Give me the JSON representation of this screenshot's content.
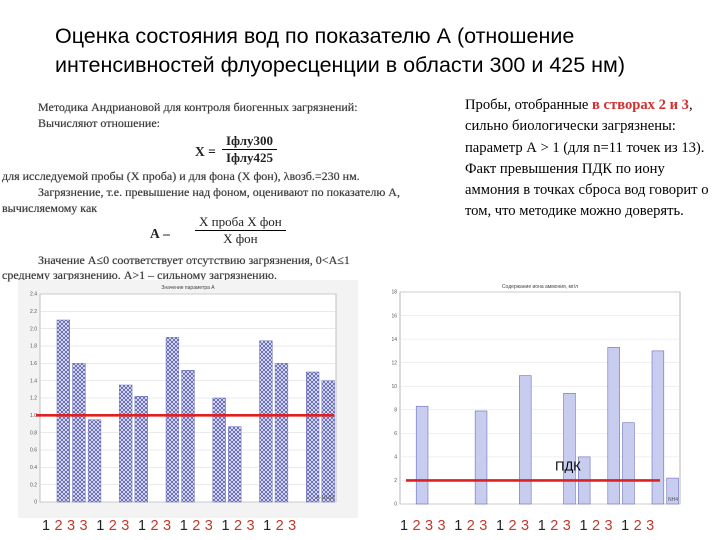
{
  "title": "Оценка состояния вод по показателю А (отношение интенсивностей флуоресценции в области 300 и 425 нм)",
  "scan": {
    "line1": "Методика Андриановой для контроля биогенных загрязнений:",
    "line2": "Вычисляют отношение:",
    "formula_lhs": "X =",
    "formula_num": "Iфлу300",
    "formula_den": "Iфлу425",
    "line3": "для исследуемой пробы (X проба) и для фона (X фон), λвозб.=230 нм.",
    "line4": "Загрязнение, т.е. превышение над фоном, оценивают по показателю А,",
    "line5": "вычисляемому как",
    "formula2_lhs": "А –",
    "formula2_num": "X проба  X фон",
    "formula2_den": "X фон",
    "line6": "Значение А≤0 соответствует отсутствию загрязнения, 0<А≤1",
    "line7": "среднему загрязнению. А>1 – сильному загрязнению."
  },
  "note": {
    "pre": "Пробы, отобранные",
    "red": "в створах 2 и 3",
    "post": ", сильно биологически загрязнены: параметр А > 1 (для n=11 точек из 13). Факт превышения ПДК по иону аммония в точках сброса вод говорит о том, что методике можно доверять."
  },
  "colors": {
    "bar_fill": "#c8cdf0",
    "bar_stroke": "#6a6fb8",
    "threshold": "#e02020",
    "x_digit_black": "#222222",
    "x_digit_red": "#c0392b"
  },
  "chart_data": [
    {
      "type": "bar",
      "title": "Значение параметра А",
      "ylim": [
        0,
        2.4
      ],
      "yticks": [
        "0",
        "0.2",
        "0.4",
        "0.6",
        "0.8",
        "1.0",
        "1.2",
        "1.4",
        "1.6",
        "1.8",
        "2.0",
        "2.2",
        "2.4"
      ],
      "categories": [
        "1",
        "2",
        "3",
        "3",
        "1",
        "2",
        "3",
        "1",
        "2",
        "3",
        "1",
        "2",
        "3",
        "1",
        "2",
        "3",
        "1",
        "2",
        "3"
      ],
      "values": [
        0,
        2.1,
        1.6,
        0.95,
        0,
        1.35,
        1.22,
        0,
        1.9,
        1.52,
        0,
        1.2,
        0.87,
        0,
        1.86,
        1.6,
        0,
        1.5,
        1.4
      ],
      "threshold": 1.0,
      "legend": "А-10-03",
      "pattern": "crosshatch"
    },
    {
      "type": "bar",
      "title": "Содержание иона аммония, мг/л",
      "ylim": [
        0,
        18
      ],
      "yticks": [
        "0",
        "2",
        "4",
        "6",
        "8",
        "10",
        "12",
        "14",
        "16",
        "18"
      ],
      "categories": [
        "1",
        "2",
        "3",
        "3",
        "1",
        "2",
        "3",
        "1",
        "2",
        "3",
        "1",
        "2",
        "3",
        "1",
        "2",
        "3",
        "1",
        "2",
        "3"
      ],
      "values": [
        0,
        8.3,
        0,
        0,
        0,
        7.9,
        0,
        0,
        10.9,
        0,
        0,
        9.4,
        4.0,
        0,
        13.3,
        6.9,
        0,
        13.0,
        2.2
      ],
      "threshold": 2.0,
      "threshold_label": "ПДК",
      "legend": "NH4"
    }
  ]
}
